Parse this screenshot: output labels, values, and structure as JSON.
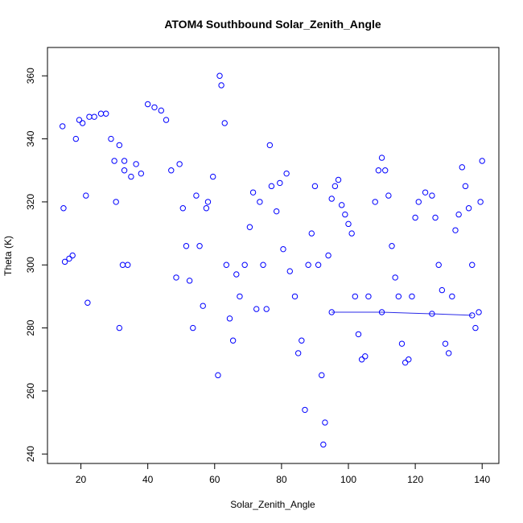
{
  "chart_data": {
    "type": "scatter",
    "title": "ATOM4 Southbound Solar_Zenith_Angle",
    "xlabel": "Solar_Zenith_Angle",
    "ylabel": "Theta (K)",
    "xlim": [
      10,
      145
    ],
    "ylim": [
      237,
      369
    ],
    "xticks": [
      20,
      40,
      60,
      80,
      100,
      120,
      140
    ],
    "yticks": [
      240,
      260,
      280,
      300,
      320,
      340,
      360
    ],
    "grid": false,
    "legend": "none",
    "marker": "open-circle",
    "color": "#0000ff",
    "series": [
      {
        "values": [
          [
            14.5,
            344
          ],
          [
            14.8,
            318
          ],
          [
            15.2,
            301
          ],
          [
            16.5,
            302
          ],
          [
            17.5,
            303
          ],
          [
            18.5,
            340
          ],
          [
            19.5,
            346
          ],
          [
            20.5,
            345
          ],
          [
            21.5,
            322
          ],
          [
            22,
            288
          ],
          [
            22.5,
            347
          ],
          [
            24,
            347
          ],
          [
            26,
            348
          ],
          [
            27.5,
            348
          ],
          [
            29,
            340
          ],
          [
            30.5,
            320
          ],
          [
            31.5,
            280
          ],
          [
            32.5,
            300
          ],
          [
            33,
            330
          ],
          [
            34,
            300
          ],
          [
            30,
            333
          ],
          [
            31.5,
            338
          ],
          [
            33,
            333
          ],
          [
            35,
            328
          ],
          [
            36.5,
            332
          ],
          [
            38,
            329
          ],
          [
            40,
            351
          ],
          [
            42,
            350
          ],
          [
            44,
            349
          ],
          [
            45.5,
            346
          ],
          [
            47,
            330
          ],
          [
            48.5,
            296
          ],
          [
            49.5,
            332
          ],
          [
            50.5,
            318
          ],
          [
            51.5,
            306
          ],
          [
            52.5,
            295
          ],
          [
            53.5,
            280
          ],
          [
            54.5,
            322
          ],
          [
            55.5,
            306
          ],
          [
            56.5,
            287
          ],
          [
            57.5,
            318
          ],
          [
            58,
            320
          ],
          [
            59.5,
            328
          ],
          [
            61,
            265
          ],
          [
            61.5,
            360
          ],
          [
            62,
            357
          ],
          [
            63,
            345
          ],
          [
            63.5,
            300
          ],
          [
            64.5,
            283
          ],
          [
            65.5,
            276
          ],
          [
            66.5,
            297
          ],
          [
            67.5,
            290
          ],
          [
            69,
            300
          ],
          [
            70.5,
            312
          ],
          [
            71.5,
            323
          ],
          [
            72.5,
            286
          ],
          [
            73.5,
            320
          ],
          [
            74.5,
            300
          ],
          [
            75.5,
            286
          ],
          [
            76.5,
            338
          ],
          [
            77,
            325
          ],
          [
            78.5,
            317
          ],
          [
            79.5,
            326
          ],
          [
            80.5,
            305
          ],
          [
            81.5,
            329
          ],
          [
            82.5,
            298
          ],
          [
            84,
            290
          ],
          [
            85,
            272
          ],
          [
            86,
            276
          ],
          [
            87,
            254
          ],
          [
            88,
            300
          ],
          [
            89,
            310
          ],
          [
            90,
            325
          ],
          [
            91,
            300
          ],
          [
            92,
            265
          ],
          [
            92.5,
            243
          ],
          [
            93,
            250
          ],
          [
            94,
            303
          ],
          [
            95,
            321
          ],
          [
            96,
            325
          ],
          [
            97,
            327
          ],
          [
            98,
            319
          ],
          [
            99,
            316
          ],
          [
            100,
            313
          ],
          [
            101,
            310
          ],
          [
            102,
            290
          ],
          [
            103,
            278
          ],
          [
            104,
            270
          ],
          [
            105,
            271
          ],
          [
            106,
            290
          ],
          [
            108,
            320
          ],
          [
            109,
            330
          ],
          [
            110,
            334
          ],
          [
            111,
            330
          ],
          [
            112,
            322
          ],
          [
            113,
            306
          ],
          [
            114,
            296
          ],
          [
            115,
            290
          ],
          [
            116,
            275
          ],
          [
            117,
            269
          ],
          [
            118,
            270
          ],
          [
            119,
            290
          ],
          [
            120,
            315
          ],
          [
            121,
            320
          ],
          [
            123,
            323
          ],
          [
            125,
            322
          ],
          [
            126,
            315
          ],
          [
            127,
            300
          ],
          [
            128,
            292
          ],
          [
            129,
            275
          ],
          [
            130,
            272
          ],
          [
            131,
            290
          ],
          [
            132,
            311
          ],
          [
            133,
            316
          ],
          [
            134,
            331
          ],
          [
            135,
            325
          ],
          [
            136,
            318
          ],
          [
            137,
            300
          ],
          [
            138,
            280
          ],
          [
            139,
            285
          ],
          [
            139.5,
            320
          ],
          [
            140,
            333
          ],
          [
            95,
            285
          ],
          [
            110,
            285
          ],
          [
            125,
            284.5
          ],
          [
            137,
            284
          ]
        ]
      }
    ]
  }
}
